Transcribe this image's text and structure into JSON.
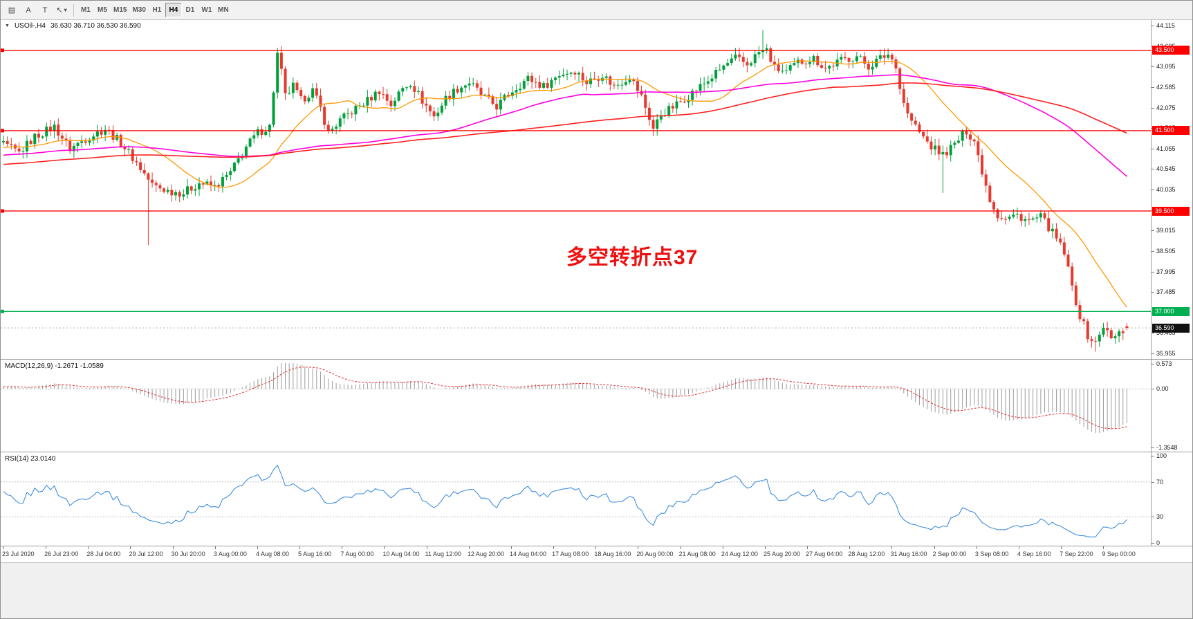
{
  "toolbar": {
    "icon_buttons": [
      {
        "name": "line-studies-icon",
        "glyph": "▤"
      },
      {
        "name": "text-label-icon",
        "glyph": "A"
      },
      {
        "name": "text-frame-icon",
        "glyph": "T"
      },
      {
        "name": "cursor-tool-icon",
        "glyph": "↖",
        "caret": "▾"
      }
    ],
    "timeframes": [
      "M1",
      "M5",
      "M15",
      "M30",
      "H1",
      "H4",
      "D1",
      "W1",
      "MN"
    ],
    "active_timeframe": "H4"
  },
  "main": {
    "collapse_icon": "▼",
    "symbol_label": "USOil-,H4",
    "ohlc_text": "36.630 36.710 36.530 36.590",
    "ohlc_values": {
      "open": 36.63,
      "high": 36.71,
      "low": 36.53,
      "close": 36.59
    },
    "annotation": {
      "text": "多空转折点37",
      "color": "#ee1010"
    },
    "hlines": [
      {
        "price": 43.5,
        "label": "43.500",
        "color": "#ff0000"
      },
      {
        "price": 41.5,
        "label": "41.500",
        "color": "#ff0000"
      },
      {
        "price": 39.5,
        "label": "39.500",
        "color": "#ff0000"
      },
      {
        "price": 37.0,
        "label": "37.000",
        "color": "#00b050"
      }
    ],
    "current_price": {
      "price": 36.59,
      "label": "36.590",
      "color": "#111111"
    }
  },
  "macd": {
    "label": "MACD(12,26,9) -1.2671 -1.0589",
    "main_value": -1.2671,
    "signal_value": -1.0589,
    "axis_labels": [
      "0.573",
      "0.00",
      "-1.3548"
    ],
    "histogram_color": "#9b9b9b",
    "signal_color": "#e03030"
  },
  "rsi": {
    "label": "RSI(14) 23.0140",
    "value": 23.014,
    "axis_labels": [
      "100",
      "70",
      "30",
      "0"
    ],
    "levels": [
      70,
      30
    ],
    "line_color": "#3f8ede"
  },
  "chart_data": {
    "type": "candlestick",
    "symbol": "USOil-",
    "timeframe": "H4",
    "title": "USOil-,H4",
    "price_range": [
      35.955,
      44.115
    ],
    "y_tick_labels": [
      "44.115",
      "43.605",
      "43.095",
      "42.585",
      "42.075",
      "41.565",
      "41.055",
      "40.545",
      "40.035",
      "39.525",
      "39.015",
      "38.505",
      "37.995",
      "37.485",
      "36.975",
      "36.465",
      "35.955"
    ],
    "x_tick_labels": [
      "23 Jul 2020",
      "26 Jul 23:00",
      "28 Jul 04:00",
      "29 Jul 12:00",
      "30 Jul 20:00",
      "3 Aug 00:00",
      "4 Aug 08:00",
      "5 Aug 16:00",
      "7 Aug 00:00",
      "10 Aug 04:00",
      "11 Aug 12:00",
      "12 Aug 20:00",
      "14 Aug 04:00",
      "17 Aug 08:00",
      "18 Aug 16:00",
      "20 Aug 00:00",
      "21 Aug 08:00",
      "24 Aug 12:00",
      "25 Aug 20:00",
      "27 Aug 04:00",
      "28 Aug 12:00",
      "31 Aug 16:00",
      "2 Sep 00:00",
      "3 Sep 08:00",
      "4 Sep 16:00",
      "7 Sep 22:00",
      "9 Sep 00:00"
    ],
    "visible_candles": 288,
    "up_color": "#00a03a",
    "down_color": "#e8392e",
    "warmup_anchors": [
      [
        -160,
        40.0
      ],
      [
        -110,
        40.35
      ],
      [
        -60,
        40.8
      ],
      [
        -20,
        41.0
      ],
      [
        -1,
        41.1
      ]
    ],
    "close_anchors": [
      [
        0,
        41.15
      ],
      [
        4,
        40.95
      ],
      [
        8,
        41.35
      ],
      [
        13,
        41.6
      ],
      [
        17,
        41.05
      ],
      [
        21,
        41.3
      ],
      [
        26,
        41.55
      ],
      [
        30,
        41.2
      ],
      [
        34,
        40.7
      ],
      [
        38,
        40.15
      ],
      [
        42,
        40.0
      ],
      [
        46,
        39.95
      ],
      [
        50,
        40.2
      ],
      [
        54,
        40.1
      ],
      [
        58,
        40.45
      ],
      [
        62,
        41.1
      ],
      [
        65,
        41.45
      ],
      [
        68,
        41.6
      ],
      [
        69,
        42.5
      ],
      [
        70,
        43.4
      ],
      [
        71,
        42.95
      ],
      [
        72,
        42.35
      ],
      [
        74,
        42.6
      ],
      [
        76,
        42.25
      ],
      [
        79,
        42.5
      ],
      [
        81,
        42.05
      ],
      [
        83,
        41.45
      ],
      [
        86,
        41.75
      ],
      [
        90,
        42.05
      ],
      [
        93,
        42.25
      ],
      [
        96,
        42.5
      ],
      [
        99,
        42.15
      ],
      [
        102,
        42.55
      ],
      [
        104,
        42.7
      ],
      [
        107,
        42.25
      ],
      [
        110,
        41.85
      ],
      [
        113,
        42.3
      ],
      [
        116,
        42.55
      ],
      [
        119,
        42.7
      ],
      [
        122,
        42.4
      ],
      [
        126,
        42.1
      ],
      [
        130,
        42.5
      ],
      [
        134,
        42.8
      ],
      [
        138,
        42.6
      ],
      [
        142,
        42.9
      ],
      [
        146,
        43.0
      ],
      [
        149,
        42.7
      ],
      [
        153,
        42.9
      ],
      [
        156,
        42.6
      ],
      [
        160,
        42.85
      ],
      [
        163,
        42.35
      ],
      [
        166,
        41.55
      ],
      [
        168,
        41.9
      ],
      [
        172,
        42.15
      ],
      [
        176,
        42.45
      ],
      [
        180,
        42.75
      ],
      [
        184,
        43.1
      ],
      [
        187,
        43.3
      ],
      [
        190,
        43.15
      ],
      [
        193,
        43.45
      ],
      [
        195,
        43.5
      ],
      [
        197,
        43.05
      ],
      [
        200,
        42.95
      ],
      [
        203,
        43.2
      ],
      [
        207,
        43.3
      ],
      [
        210,
        43.05
      ],
      [
        214,
        43.25
      ],
      [
        218,
        43.35
      ],
      [
        221,
        43.1
      ],
      [
        224,
        43.3
      ],
      [
        226,
        43.4
      ],
      [
        228,
        43.15
      ],
      [
        229,
        42.55
      ],
      [
        231,
        41.9
      ],
      [
        234,
        41.45
      ],
      [
        237,
        41.1
      ],
      [
        240,
        40.9
      ],
      [
        243,
        41.15
      ],
      [
        246,
        41.5
      ],
      [
        248,
        41.25
      ],
      [
        250,
        40.5
      ],
      [
        252,
        39.8
      ],
      [
        254,
        39.4
      ],
      [
        256,
        39.3
      ],
      [
        259,
        39.4
      ],
      [
        262,
        39.25
      ],
      [
        265,
        39.35
      ],
      [
        267,
        39.1
      ],
      [
        269,
        38.8
      ],
      [
        271,
        38.45
      ],
      [
        273,
        37.6
      ],
      [
        275,
        36.9
      ],
      [
        277,
        36.4
      ],
      [
        279,
        36.2
      ],
      [
        281,
        36.65
      ],
      [
        283,
        36.3
      ],
      [
        285,
        36.45
      ],
      [
        287,
        36.59
      ]
    ],
    "long_wicks": [
      {
        "i": 37,
        "low": 38.65
      },
      {
        "i": 70,
        "high": 43.56
      },
      {
        "i": 194,
        "high": 44.0
      },
      {
        "i": 240,
        "low": 39.95
      },
      {
        "i": 279,
        "low": 36.0
      }
    ],
    "moving_averages": [
      {
        "name": "ma-fast",
        "period": 20,
        "color": "#ff9900",
        "width": 1.3
      },
      {
        "name": "ma-mid",
        "period": 80,
        "color": "#ff00dd",
        "width": 1.6
      },
      {
        "name": "ma-slow",
        "period": 144,
        "color": "#ff2020",
        "width": 1.6
      }
    ],
    "indicators": {
      "macd": {
        "fast": 12,
        "slow": 26,
        "signal": 9
      },
      "rsi": {
        "period": 14
      }
    }
  }
}
